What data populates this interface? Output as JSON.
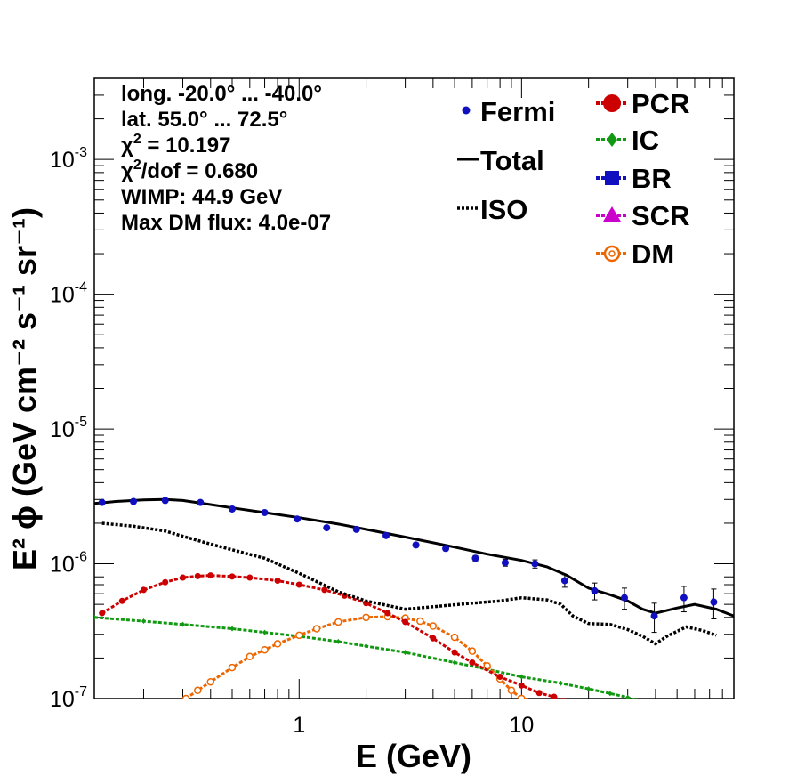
{
  "chart_data": {
    "type": "scatter",
    "x_scale": "log",
    "y_scale": "log",
    "xlim": [
      0.12,
      90
    ],
    "ylim": [
      1e-07,
      0.004
    ],
    "xlabel": "E (GeV)",
    "ylabel": "E² ϕ (GeV cm⁻² s⁻¹ sr⁻¹)",
    "x_ticks": [
      {
        "value": 1,
        "label": "1"
      },
      {
        "value": 10,
        "label": "10"
      }
    ],
    "y_ticks": [
      {
        "value": 1e-07,
        "mant": "10",
        "exp": "-7"
      },
      {
        "value": 1e-06,
        "mant": "10",
        "exp": "-6"
      },
      {
        "value": 1e-05,
        "mant": "10",
        "exp": "-5"
      },
      {
        "value": 0.0001,
        "mant": "10",
        "exp": "-4"
      },
      {
        "value": 0.001,
        "mant": "10",
        "exp": "-3"
      }
    ],
    "info": {
      "longitude": "long. -20.0° ... -40.0°",
      "latitude": "lat. 55.0° ... 72.5°",
      "chi2_prefix": "χ",
      "chi2_sup": "2",
      "chi2_value": " = 10.197",
      "chi2dof_prefix": "χ",
      "chi2dof_sup": "2",
      "chi2dof_value": "/dof = 0.680",
      "wimp": "WIMP: 44.9 GeV",
      "max_dm_flux": "Max DM flux: 4.0e-07"
    },
    "legend": [
      {
        "key": "fermi",
        "label": "Fermi",
        "color": "#1010c0",
        "style": "marker"
      },
      {
        "key": "total",
        "label": "Total",
        "color": "#000000",
        "style": "line"
      },
      {
        "key": "iso",
        "label": "ISO",
        "color": "#000000",
        "style": "dotted"
      },
      {
        "key": "pcr",
        "label": "PCR",
        "color": "#cc0000",
        "style": "dash-circle"
      },
      {
        "key": "ic",
        "label": "IC",
        "color": "#119911",
        "style": "dash-diamond"
      },
      {
        "key": "br",
        "label": "BR",
        "color": "#1010c0",
        "style": "dash-square"
      },
      {
        "key": "scr",
        "label": "SCR",
        "color": "#cc00cc",
        "style": "dash-triangle"
      },
      {
        "key": "dm",
        "label": "DM",
        "color": "#ee6600",
        "style": "dash-open-circle"
      }
    ],
    "series": [
      {
        "name": "Fermi",
        "color": "#1010c0",
        "x": [
          0.13,
          0.18,
          0.25,
          0.36,
          0.5,
          0.7,
          0.98,
          1.33,
          1.81,
          2.46,
          3.35,
          4.56,
          6.2,
          8.44,
          11.49,
          15.63,
          21.3,
          29.0,
          39.5,
          53.7,
          73.1
        ],
        "y": [
          2.85e-06,
          2.9e-06,
          2.95e-06,
          2.85e-06,
          2.55e-06,
          2.4e-06,
          2.15e-06,
          1.85e-06,
          1.8e-06,
          1.62e-06,
          1.38e-06,
          1.3e-06,
          1.1e-06,
          1.02e-06,
          1e-06,
          7.5e-07,
          6.3e-07,
          5.6e-07,
          4.1e-07,
          5.6e-07,
          5.2e-07
        ],
        "err": [
          5e-08,
          5e-08,
          5e-08,
          5e-08,
          5e-08,
          5e-08,
          5e-08,
          5e-08,
          5e-08,
          5e-08,
          5e-08,
          5e-08,
          5e-08,
          6e-08,
          7e-08,
          8e-08,
          9e-08,
          1e-07,
          1e-07,
          1.2e-07,
          1.3e-07
        ]
      },
      {
        "name": "Total",
        "color": "#000000",
        "x": [
          0.12,
          0.15,
          0.2,
          0.25,
          0.3,
          0.4,
          0.5,
          0.7,
          1.0,
          1.5,
          2.0,
          3.0,
          5.0,
          7.0,
          10.0,
          13.0,
          16.0,
          20.0,
          25.0,
          30.0,
          35.0,
          40.0,
          50.0,
          60.0,
          75.0,
          90.0
        ],
        "y": [
          2.8e-06,
          2.9e-06,
          2.98e-06,
          3e-06,
          2.95e-06,
          2.75e-06,
          2.6e-06,
          2.4e-06,
          2.2e-06,
          1.97e-06,
          1.8e-06,
          1.58e-06,
          1.33e-06,
          1.18e-06,
          1.06e-06,
          9.5e-07,
          8.2e-07,
          6.6e-07,
          5.9e-07,
          5.3e-07,
          4.6e-07,
          4.3e-07,
          4.7e-07,
          5e-07,
          4.6e-07,
          4.1e-07
        ]
      },
      {
        "name": "ISO",
        "color": "#000000",
        "x": [
          0.13,
          0.18,
          0.25,
          0.3,
          0.4,
          0.5,
          0.7,
          1.0,
          1.5,
          2.0,
          3.0,
          4.0,
          6.0,
          8.0,
          10.0,
          13.0,
          15.0,
          17.0,
          20.0,
          25.0,
          30.0,
          35.0,
          40.0,
          45.0,
          55.0,
          65.0,
          75.0
        ],
        "y": [
          2e-06,
          1.9e-06,
          1.75e-06,
          1.6e-06,
          1.4e-06,
          1.27e-06,
          1.1e-06,
          8.5e-07,
          6.2e-07,
          5.3e-07,
          4.6e-07,
          4.8e-07,
          5.1e-07,
          5.3e-07,
          5.6e-07,
          5.4e-07,
          5e-07,
          4.1e-07,
          3.6e-07,
          3.55e-07,
          3.25e-07,
          2.9e-07,
          2.55e-07,
          2.9e-07,
          3.4e-07,
          3.2e-07,
          2.95e-07
        ]
      },
      {
        "name": "PCR",
        "color": "#cc0000",
        "x": [
          0.13,
          0.16,
          0.2,
          0.25,
          0.3,
          0.35,
          0.4,
          0.5,
          0.6,
          0.8,
          1.0,
          1.3,
          1.6,
          2.0,
          2.5,
          3.0,
          4.0,
          5.0,
          6.0,
          8.0,
          10.0,
          12.0,
          14.0,
          15.5
        ],
        "y": [
          4.3e-07,
          5.3e-07,
          6.4e-07,
          7.3e-07,
          7.9e-07,
          8.1e-07,
          8.2e-07,
          8.05e-07,
          7.9e-07,
          7.5e-07,
          7e-07,
          6.4e-07,
          5.8e-07,
          5.1e-07,
          4.3e-07,
          3.7e-07,
          2.8e-07,
          2.2e-07,
          1.85e-07,
          1.45e-07,
          1.25e-07,
          1.1e-07,
          1.03e-07,
          9.6e-08
        ]
      },
      {
        "name": "IC",
        "color": "#119911",
        "x": [
          0.12,
          0.2,
          0.3,
          0.5,
          0.7,
          1.0,
          1.5,
          2.0,
          3.0,
          5.0,
          7.0,
          10.0,
          15.0,
          20.0,
          25.0,
          30.0,
          33.0
        ],
        "y": [
          4e-07,
          3.75e-07,
          3.55e-07,
          3.3e-07,
          3.1e-07,
          2.9e-07,
          2.65e-07,
          2.45e-07,
          2.2e-07,
          1.85e-07,
          1.65e-07,
          1.45e-07,
          1.3e-07,
          1.18e-07,
          1.09e-07,
          1.02e-07,
          9.7e-08
        ]
      },
      {
        "name": "DM",
        "color": "#ee6600",
        "x": [
          0.31,
          0.35,
          0.4,
          0.5,
          0.6,
          0.7,
          0.8,
          1.0,
          1.2,
          1.5,
          2.0,
          2.5,
          3.0,
          3.5,
          4.0,
          5.0,
          6.0,
          7.0,
          8.0,
          9.0,
          10.0,
          10.5
        ],
        "y": [
          1e-07,
          1.15e-07,
          1.33e-07,
          1.7e-07,
          2.05e-07,
          2.3e-07,
          2.55e-07,
          2.95e-07,
          3.3e-07,
          3.7e-07,
          4e-07,
          4.05e-07,
          3.95e-07,
          3.75e-07,
          3.45e-07,
          2.85e-07,
          2.25e-07,
          1.75e-07,
          1.4e-07,
          1.15e-07,
          1e-07,
          9.5e-08
        ]
      }
    ]
  }
}
